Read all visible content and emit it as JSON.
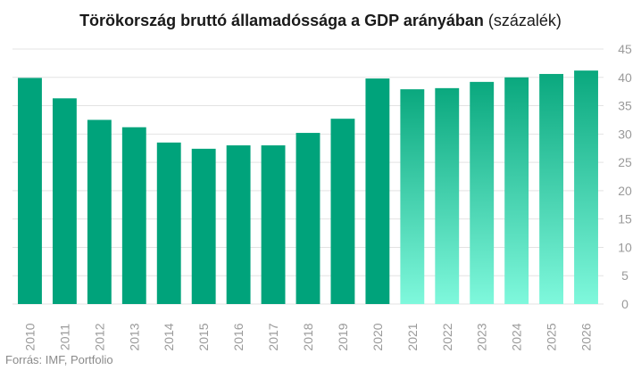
{
  "title": {
    "main": "Törökország bruttó államadóssága a GDP arányában",
    "unit": "(százalék)"
  },
  "source": "Forrás: IMF, Portfolio",
  "colors": {
    "actual": "#00a37b",
    "forecast_top": "#0aa87e",
    "forecast_bottom": "#7ff8dc",
    "grid": "#e3e3e3",
    "tick_text": "#9a9a9a"
  },
  "chart_data": {
    "type": "bar",
    "categories": [
      "2010",
      "2011",
      "2012",
      "2013",
      "2014",
      "2015",
      "2016",
      "2017",
      "2018",
      "2019",
      "2020",
      "2021",
      "2022",
      "2023",
      "2024",
      "2025",
      "2026"
    ],
    "values": [
      39.9,
      36.3,
      32.5,
      31.2,
      28.5,
      27.4,
      28.0,
      28.0,
      30.2,
      32.7,
      39.8,
      37.9,
      38.1,
      39.2,
      40.0,
      40.6,
      41.2
    ],
    "forecast_from_index": 11,
    "ylim": [
      0,
      45
    ],
    "yticks": [
      0,
      5,
      10,
      15,
      20,
      25,
      30,
      35,
      40,
      45
    ],
    "y_axis_position": "right",
    "grid": true
  }
}
